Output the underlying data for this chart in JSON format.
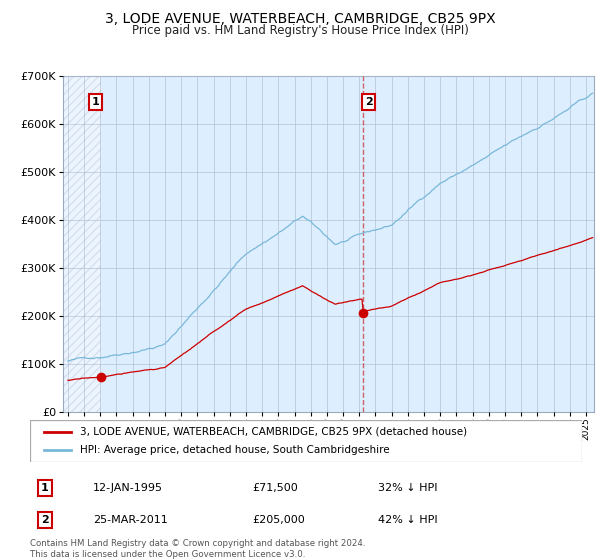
{
  "title": "3, LODE AVENUE, WATERBEACH, CAMBRIDGE, CB25 9PX",
  "subtitle": "Price paid vs. HM Land Registry's House Price Index (HPI)",
  "legend_line1": "3, LODE AVENUE, WATERBEACH, CAMBRIDGE, CB25 9PX (detached house)",
  "legend_line2": "HPI: Average price, detached house, South Cambridgeshire",
  "purchase1_date": "12-JAN-1995",
  "purchase1_price": "£71,500",
  "purchase1_hpi": "32% ↓ HPI",
  "purchase2_date": "25-MAR-2011",
  "purchase2_price": "£205,000",
  "purchase2_hpi": "42% ↓ HPI",
  "footer": "Contains HM Land Registry data © Crown copyright and database right 2024.\nThis data is licensed under the Open Government Licence v3.0.",
  "hpi_color": "#7ab8d9",
  "price_color": "#cc0000",
  "bg_color": "#ddeeff",
  "hatch_color": "#c8d8e8",
  "grid_color": "#b0bcd0",
  "ylim": [
    0,
    700000
  ],
  "yticks": [
    0,
    100000,
    200000,
    300000,
    400000,
    500000,
    600000,
    700000
  ],
  "ytick_labels": [
    "£0",
    "£100K",
    "£200K",
    "£300K",
    "£400K",
    "£500K",
    "£600K",
    "£700K"
  ],
  "purchase1_x": 1995.04,
  "purchase1_y": 71500,
  "purchase2_x": 2011.23,
  "purchase2_y": 205000,
  "vline_x": 2011.23,
  "xmin": 1993.0,
  "xmax": 2025.5
}
